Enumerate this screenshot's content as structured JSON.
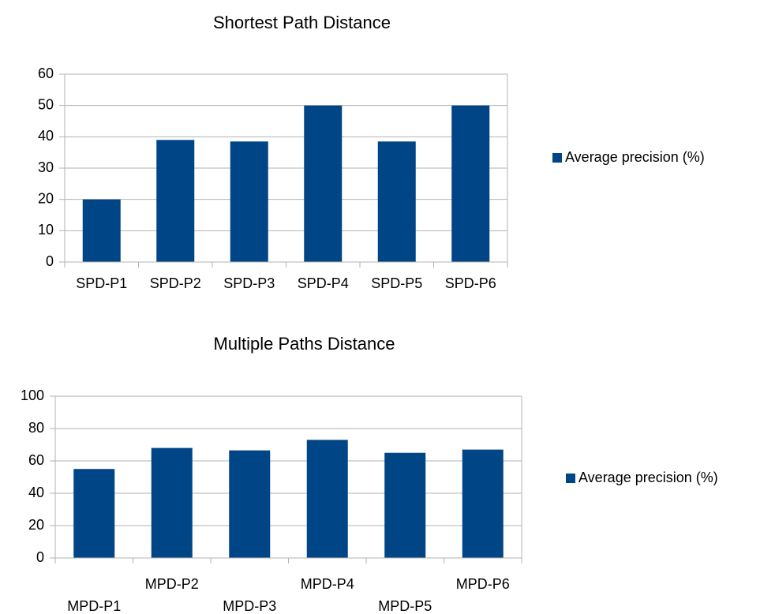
{
  "chart_data": [
    {
      "type": "bar",
      "title": "Shortest Path Distance",
      "categories": [
        "SPD-P1",
        "SPD-P2",
        "SPD-P3",
        "SPD-P4",
        "SPD-P5",
        "SPD-P6"
      ],
      "series": [
        {
          "name": "Average precision (%)",
          "color": "#004586",
          "values": [
            20,
            39,
            38.5,
            50,
            38.5,
            50
          ]
        }
      ],
      "ylim": [
        0,
        60
      ],
      "yticks": [
        0,
        10,
        20,
        30,
        40,
        50,
        60
      ],
      "grid": true,
      "legend": "right"
    },
    {
      "type": "bar",
      "title": "Multiple Paths Distance",
      "categories": [
        "MPD-P1",
        "MPD-P2",
        "MPD-P3",
        "MPD-P4",
        "MPD-P5",
        "MPD-P6"
      ],
      "series": [
        {
          "name": "Average precision (%)",
          "color": "#004586",
          "values": [
            55,
            68,
            66.5,
            73,
            65,
            67
          ]
        }
      ],
      "ylim": [
        0,
        100
      ],
      "yticks": [
        0,
        20,
        40,
        60,
        80,
        100
      ],
      "grid": true,
      "legend": "right"
    }
  ]
}
